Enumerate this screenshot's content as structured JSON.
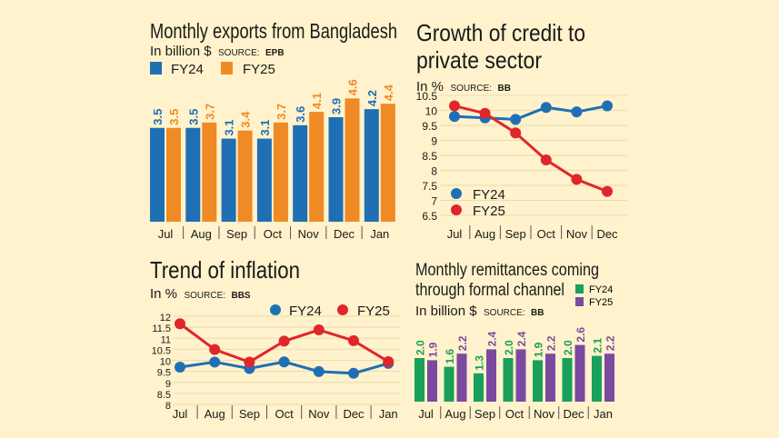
{
  "colors": {
    "background": "#fff2cc",
    "blue": "#1f6fb5",
    "orange": "#f08a24",
    "red": "#e0262a",
    "green": "#19a05a",
    "purple": "#7b4aa0",
    "grid": "#eadcae"
  },
  "chart_data": [
    {
      "id": "exports",
      "type": "bar",
      "title": "Monthly exports from Bangladesh",
      "unit": "In billion $",
      "source_label": "SOURCE:",
      "source": "EPB",
      "categories": [
        "Jul",
        "Aug",
        "Sep",
        "Oct",
        "Nov",
        "Dec",
        "Jan"
      ],
      "series": [
        {
          "name": "FY24",
          "color": "#1f6fb5",
          "values": [
            3.5,
            3.5,
            3.1,
            3.1,
            3.6,
            3.9,
            4.2
          ],
          "labels": [
            "3.5",
            "3.5",
            "3.1",
            "3.1",
            "3.6",
            "3.9",
            "4.2"
          ]
        },
        {
          "name": "FY25",
          "color": "#f08a24",
          "values": [
            3.5,
            3.7,
            3.4,
            3.7,
            4.1,
            4.6,
            4.4
          ],
          "labels": [
            "3.5",
            "3.7",
            "3.4",
            "3.7",
            "4.1",
            "4.6",
            "4.4"
          ]
        }
      ],
      "legend": "top-left",
      "grid": false
    },
    {
      "id": "credit",
      "type": "line",
      "title_lines": [
        "Growth of credit to",
        "private sector"
      ],
      "unit": "In %",
      "source_label": "SOURCE:",
      "source": "BB",
      "categories": [
        "Jul",
        "Aug",
        "Sep",
        "Oct",
        "Nov",
        "Dec"
      ],
      "yticks": [
        "10.5",
        "10",
        "9.5",
        "9",
        "8.5",
        "8",
        "7.5",
        "7",
        "6.5"
      ],
      "ylim": [
        6.5,
        10.5
      ],
      "series": [
        {
          "name": "FY24",
          "color": "#1f6fb5",
          "values": [
            9.8,
            9.75,
            9.7,
            10.1,
            9.95,
            10.15
          ]
        },
        {
          "name": "FY25",
          "color": "#e0262a",
          "values": [
            10.15,
            9.9,
            9.25,
            8.35,
            7.7,
            7.3
          ]
        }
      ],
      "legend": "bottom-left",
      "grid": true
    },
    {
      "id": "inflation",
      "type": "line",
      "title": "Trend of inflation",
      "unit": "In %",
      "source_label": "SOURCE:",
      "source": "BBS",
      "categories": [
        "Jul",
        "Aug",
        "Sep",
        "Oct",
        "Nov",
        "Dec",
        "Jan"
      ],
      "yticks": [
        "12",
        "11.5",
        "11",
        "10.5",
        "10",
        "9.5",
        "9",
        "8.5",
        "8"
      ],
      "ylim": [
        8,
        12
      ],
      "series": [
        {
          "name": "FY24",
          "color": "#1f6fb5",
          "values": [
            9.69,
            9.92,
            9.63,
            9.93,
            9.49,
            9.41,
            9.86
          ]
        },
        {
          "name": "FY25",
          "color": "#e0262a",
          "values": [
            11.66,
            10.49,
            9.92,
            10.87,
            11.38,
            10.89,
            9.94
          ]
        }
      ],
      "legend": "top-right",
      "grid": true
    },
    {
      "id": "remittance",
      "type": "bar",
      "title_lines": [
        "Monthly remittances coming",
        "through formal channel"
      ],
      "unit": "In billion $",
      "source_label": "SOURCE:",
      "source": "BB",
      "categories": [
        "Jul",
        "Aug",
        "Sep",
        "Oct",
        "Nov",
        "Dec",
        "Jan"
      ],
      "series": [
        {
          "name": "FY24",
          "color": "#19a05a",
          "values": [
            2.0,
            1.6,
            1.3,
            2.0,
            1.9,
            2.0,
            2.1
          ],
          "labels": [
            "2.0",
            "1.6",
            "1.3",
            "2.0",
            "1.9",
            "2.0",
            "2.1"
          ]
        },
        {
          "name": "FY25",
          "color": "#7b4aa0",
          "values": [
            1.9,
            2.2,
            2.4,
            2.4,
            2.2,
            2.6,
            2.2
          ],
          "labels": [
            "1.9",
            "2.2",
            "2.4",
            "2.4",
            "2.2",
            "2.6",
            "2.2"
          ]
        }
      ],
      "legend": "top-right",
      "grid": false
    }
  ]
}
